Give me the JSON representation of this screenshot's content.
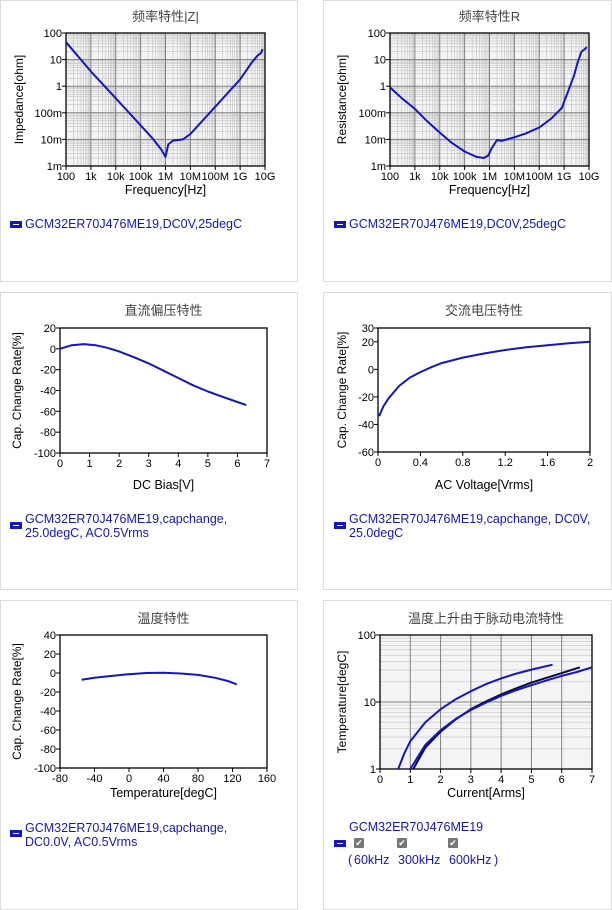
{
  "chart_data": [
    {
      "id": "imp",
      "type": "line",
      "title": "频率特性|Z|",
      "xlabel": "Frequency[Hz]",
      "ylabel": "Impedance[ohm]",
      "xscale": "log",
      "yscale": "log",
      "xlim": [
        100,
        10000000000
      ],
      "ylim": [
        0.001,
        100
      ],
      "xticks": [
        100,
        1000,
        10000,
        100000,
        1000000,
        10000000,
        100000000,
        1000000000,
        10000000000
      ],
      "xticklabels": [
        "100",
        "1k",
        "10k",
        "100k",
        "1M",
        "10M",
        "100M",
        "1G",
        "10G"
      ],
      "yticks": [
        0.001,
        0.01,
        0.1,
        1,
        10,
        100
      ],
      "yticklabels": [
        "1m",
        "10m",
        "100m",
        "1",
        "10",
        "100"
      ],
      "grid": true,
      "series": [
        {
          "name": "GCM32ER70J476ME19,DC0V,25degC",
          "color": "#1515c8",
          "x": [
            100,
            1000,
            10000,
            100000,
            300000,
            700000,
            1000000,
            1300000,
            2000000,
            5000000,
            10000000,
            100000000,
            1000000000,
            3000000000,
            5000000000,
            7000000000,
            8000000000
          ],
          "y": [
            45,
            3.6,
            0.35,
            0.034,
            0.011,
            0.004,
            0.0022,
            0.0065,
            0.009,
            0.01,
            0.016,
            0.17,
            1.8,
            8,
            14,
            18,
            25
          ]
        }
      ]
    },
    {
      "id": "res",
      "type": "line",
      "title": "频率特性R",
      "xlabel": "Frequency[Hz]",
      "ylabel": "Resistance[ohm]",
      "xscale": "log",
      "yscale": "log",
      "xlim": [
        100,
        10000000000
      ],
      "ylim": [
        0.001,
        100
      ],
      "xticks": [
        100,
        1000,
        10000,
        100000,
        1000000,
        10000000,
        100000000,
        1000000000,
        10000000000
      ],
      "xticklabels": [
        "100",
        "1k",
        "10k",
        "100k",
        "1M",
        "10M",
        "100M",
        "1G",
        "10G"
      ],
      "yticks": [
        0.001,
        0.01,
        0.1,
        1,
        10,
        100
      ],
      "yticklabels": [
        "1m",
        "10m",
        "100m",
        "1",
        "10",
        "100"
      ],
      "grid": true,
      "series": [
        {
          "name": "GCM32ER70J476ME19,DC0V,25degC",
          "color": "#1515c8",
          "x": [
            100,
            300,
            1000,
            3000,
            10000,
            30000,
            100000,
            300000,
            600000,
            900000,
            1200000,
            2000000,
            3000000,
            10000000,
            30000000,
            100000000,
            300000000,
            800000000,
            1500000000,
            2500000000,
            3500000000,
            5000000000,
            7000000000,
            8000000000
          ],
          "y": [
            0.9,
            0.35,
            0.14,
            0.05,
            0.018,
            0.0075,
            0.0035,
            0.0022,
            0.002,
            0.0025,
            0.0045,
            0.0095,
            0.0088,
            0.012,
            0.017,
            0.028,
            0.06,
            0.15,
            0.7,
            2.5,
            8,
            20,
            25,
            30
          ]
        }
      ]
    },
    {
      "id": "dcbias",
      "type": "line",
      "title": "直流偏压特性",
      "xlabel": "DC Bias[V]",
      "ylabel": "Cap. Change Rate[%]",
      "xlim": [
        0,
        7
      ],
      "ylim": [
        -100,
        20
      ],
      "xticks": [
        0,
        1,
        2,
        3,
        4,
        5,
        6,
        7
      ],
      "xticklabels": [
        "0",
        "1",
        "2",
        "3",
        "4",
        "5",
        "6",
        "7"
      ],
      "yticks": [
        -100,
        -80,
        -60,
        -40,
        -20,
        0,
        20
      ],
      "yticklabels": [
        "-100",
        "-80",
        "-60",
        "-40",
        "-20",
        "0",
        "20"
      ],
      "grid": false,
      "series": [
        {
          "name": "GCM32ER70J476ME19,capchange, 25.0degC, AC0.5Vrms",
          "color": "#1515c8",
          "x": [
            0,
            0.4,
            0.8,
            1.2,
            1.6,
            2,
            2.5,
            3,
            3.5,
            4,
            4.5,
            5,
            5.5,
            6,
            6.3
          ],
          "y": [
            0,
            3.5,
            4.5,
            3.5,
            1,
            -2.5,
            -8,
            -14,
            -21,
            -28,
            -35,
            -41,
            -46,
            -51,
            -54
          ]
        }
      ]
    },
    {
      "id": "acv",
      "type": "line",
      "title": "交流电压特性",
      "xlabel": "AC Voltage[Vrms]",
      "ylabel": "Cap. Change Rate[%]",
      "xlim": [
        0,
        2
      ],
      "ylim": [
        -60,
        30
      ],
      "xticks": [
        0,
        0.4,
        0.8,
        1.2,
        1.6,
        2
      ],
      "xticklabels": [
        "0",
        "0.4",
        "0.8",
        "1.2",
        "1.6",
        "2"
      ],
      "yticks": [
        -60,
        -40,
        -20,
        0,
        20,
        30
      ],
      "yticklabels": [
        "-60",
        "-40",
        "-20",
        "0",
        "20",
        "30"
      ],
      "grid": false,
      "series": [
        {
          "name": "GCM32ER70J476ME19,capchange, DC0V, 25.0degC",
          "color": "#1515c8",
          "x": [
            0.01,
            0.05,
            0.1,
            0.2,
            0.3,
            0.4,
            0.5,
            0.6,
            0.8,
            1,
            1.2,
            1.4,
            1.6,
            1.8,
            2
          ],
          "y": [
            -34,
            -27,
            -21,
            -12,
            -6,
            -2,
            1.5,
            4.5,
            8.5,
            11.5,
            14,
            16,
            17.5,
            19,
            20
          ]
        }
      ]
    },
    {
      "id": "temp",
      "type": "line",
      "title": "温度特性",
      "xlabel": "Temperature[degC]",
      "ylabel": "Cap. Change Rate[%]",
      "xlim": [
        -80,
        160
      ],
      "ylim": [
        -100,
        40
      ],
      "xticks": [
        -80,
        -40,
        0,
        40,
        80,
        120,
        160
      ],
      "xticklabels": [
        "-80",
        "-40",
        "0",
        "40",
        "80",
        "120",
        "160"
      ],
      "yticks": [
        -100,
        -80,
        -60,
        -40,
        -20,
        0,
        20,
        40
      ],
      "yticklabels": [
        "-100",
        "-80",
        "-60",
        "-40",
        "-20",
        "0",
        "20",
        "40"
      ],
      "grid": false,
      "series": [
        {
          "name": "GCM32ER70J476ME19,capchange, DC0.0V, AC0.5Vrms",
          "color": "#1515c8",
          "x": [
            -55,
            -40,
            -20,
            0,
            20,
            40,
            60,
            80,
            100,
            115,
            125
          ],
          "y": [
            -7,
            -5,
            -3,
            -1.3,
            0,
            0.3,
            -0.5,
            -2,
            -5,
            -8.5,
            -12
          ]
        }
      ]
    },
    {
      "id": "ripple",
      "type": "line",
      "title": "温度上升由于脉动电流特性",
      "xlabel": "Current[Arms]",
      "ylabel": "Temperature[degC]",
      "yscale": "log",
      "xlim": [
        0,
        7
      ],
      "ylim": [
        1,
        100
      ],
      "xticks": [
        0,
        1,
        2,
        3,
        4,
        5,
        6,
        7
      ],
      "xticklabels": [
        "0",
        "1",
        "2",
        "3",
        "4",
        "5",
        "6",
        "7"
      ],
      "yticks": [
        1,
        10,
        100
      ],
      "yticklabels": [
        "1",
        "10",
        "100"
      ],
      "grid": true,
      "series": [
        {
          "name": "60kHz",
          "color": "#1515c8",
          "x": [
            0.6,
            0.8,
            1,
            1.5,
            2,
            2.5,
            3,
            3.5,
            4,
            4.5,
            5,
            5.7
          ],
          "y": [
            1,
            1.7,
            2.6,
            5,
            7.8,
            11,
            14.5,
            18.5,
            22.5,
            26.5,
            30.5,
            36
          ]
        },
        {
          "name": "300kHz",
          "color": "#0a0a3c",
          "x": [
            1.1,
            1.5,
            2,
            2.5,
            3,
            3.5,
            4,
            4.5,
            5,
            5.5,
            6,
            6.6
          ],
          "y": [
            1,
            2.1,
            3.6,
            5.5,
            7.8,
            10.2,
            13,
            16,
            19.5,
            23,
            27,
            33
          ]
        },
        {
          "name": "600kHz",
          "color": "#1515c8",
          "x": [
            1,
            1.5,
            2,
            2.5,
            3,
            3.5,
            4,
            4.5,
            5,
            5.5,
            6,
            6.5,
            7
          ],
          "y": [
            1,
            2.3,
            3.8,
            5.6,
            7.6,
            9.8,
            12.3,
            15,
            17.8,
            21,
            24.5,
            28,
            33
          ]
        }
      ]
    }
  ],
  "legends": {
    "imp": "GCM32ER70J476ME19,DC0V,25degC",
    "res": "GCM32ER70J476ME19,DC0V,25degC",
    "dcbias_l1": "GCM32ER70J476ME19,capchange,",
    "dcbias_l2": "25.0degC, AC0.5Vrms",
    "acv_l1": "GCM32ER70J476ME19,capchange, DC0V,",
    "acv_l2": "25.0degC",
    "temp_l1": "GCM32ER70J476ME19,capchange,",
    "temp_l2": "DC0.0V, AC0.5Vrms",
    "ripple_name": "GCM32ER70J476ME19",
    "ripple_freqs": [
      "60kHz",
      "300kHz",
      "600kHz"
    ],
    "ripple_open": "(",
    "ripple_close": ")",
    "check_glyph": "✔"
  },
  "colors": {
    "series": "#1515c8",
    "grid": "#808080",
    "panel_border": "#dcdcdc",
    "plot_bg": "#f4f4f4"
  }
}
